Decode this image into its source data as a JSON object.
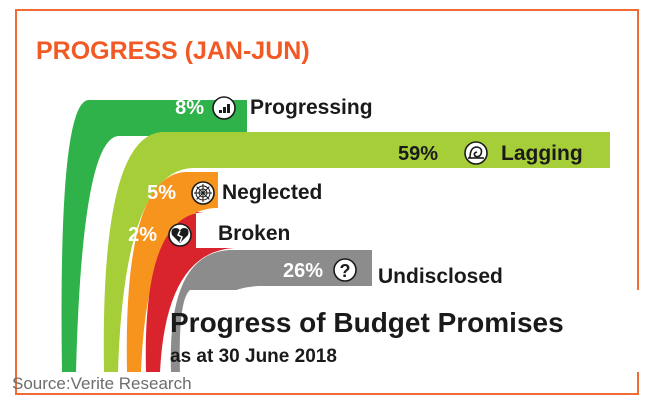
{
  "header": {
    "title": "PROGRESS (JAN-JUN)"
  },
  "chart_data": {
    "type": "bar",
    "title": "Progress of Budget Promises",
    "subtitle": "as at 30 June 2018",
    "categories": [
      "Progressing",
      "Lagging",
      "Neglected",
      "Broken",
      "Undisclosed"
    ],
    "values": [
      8,
      59,
      5,
      2,
      26
    ],
    "value_labels": [
      "8%",
      "59%",
      "5%",
      "2%",
      "26%"
    ],
    "unit": "%",
    "colors": [
      "#2fb24a",
      "#a6ce39",
      "#f7941d",
      "#d9232d",
      "#8c8c8c"
    ],
    "icons": [
      "bar-chart-icon",
      "snail-icon",
      "spider-web-icon",
      "broken-heart-icon",
      "question-mark-icon"
    ],
    "accent_color": "#f15a24"
  },
  "source": "Source:Verite Research"
}
